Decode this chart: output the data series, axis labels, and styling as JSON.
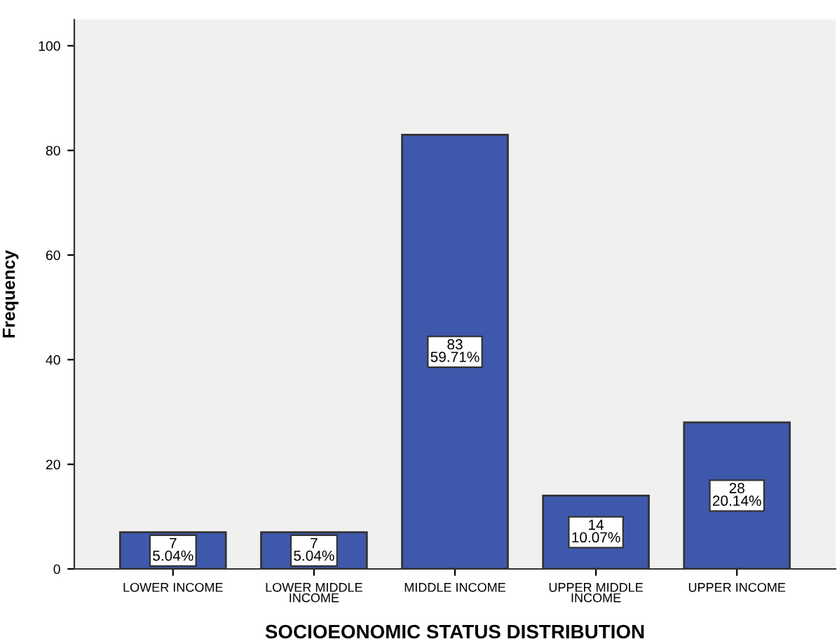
{
  "chart_data": {
    "type": "bar",
    "xlabel": "SOCIOEONOMIC STATUS DISTRIBUTION",
    "ylabel": "Frequency",
    "categories": [
      "LOWER INCOME",
      "LOWER MIDDLE\nINCOME",
      "MIDDLE INCOME",
      "UPPER MIDDLE\nINCOME",
      "UPPER INCOME"
    ],
    "values": [
      7,
      7,
      83,
      14,
      28
    ],
    "value_labels": [
      "7\n5.04%",
      "7\n5.04%",
      "83\n59.71%",
      "14\n10.07%",
      "28\n20.14%"
    ],
    "color": "#3e58ac",
    "ylim": [
      0,
      105
    ],
    "yticks": [
      0,
      20,
      40,
      60,
      80,
      100
    ],
    "grid": false,
    "legend": false
  }
}
